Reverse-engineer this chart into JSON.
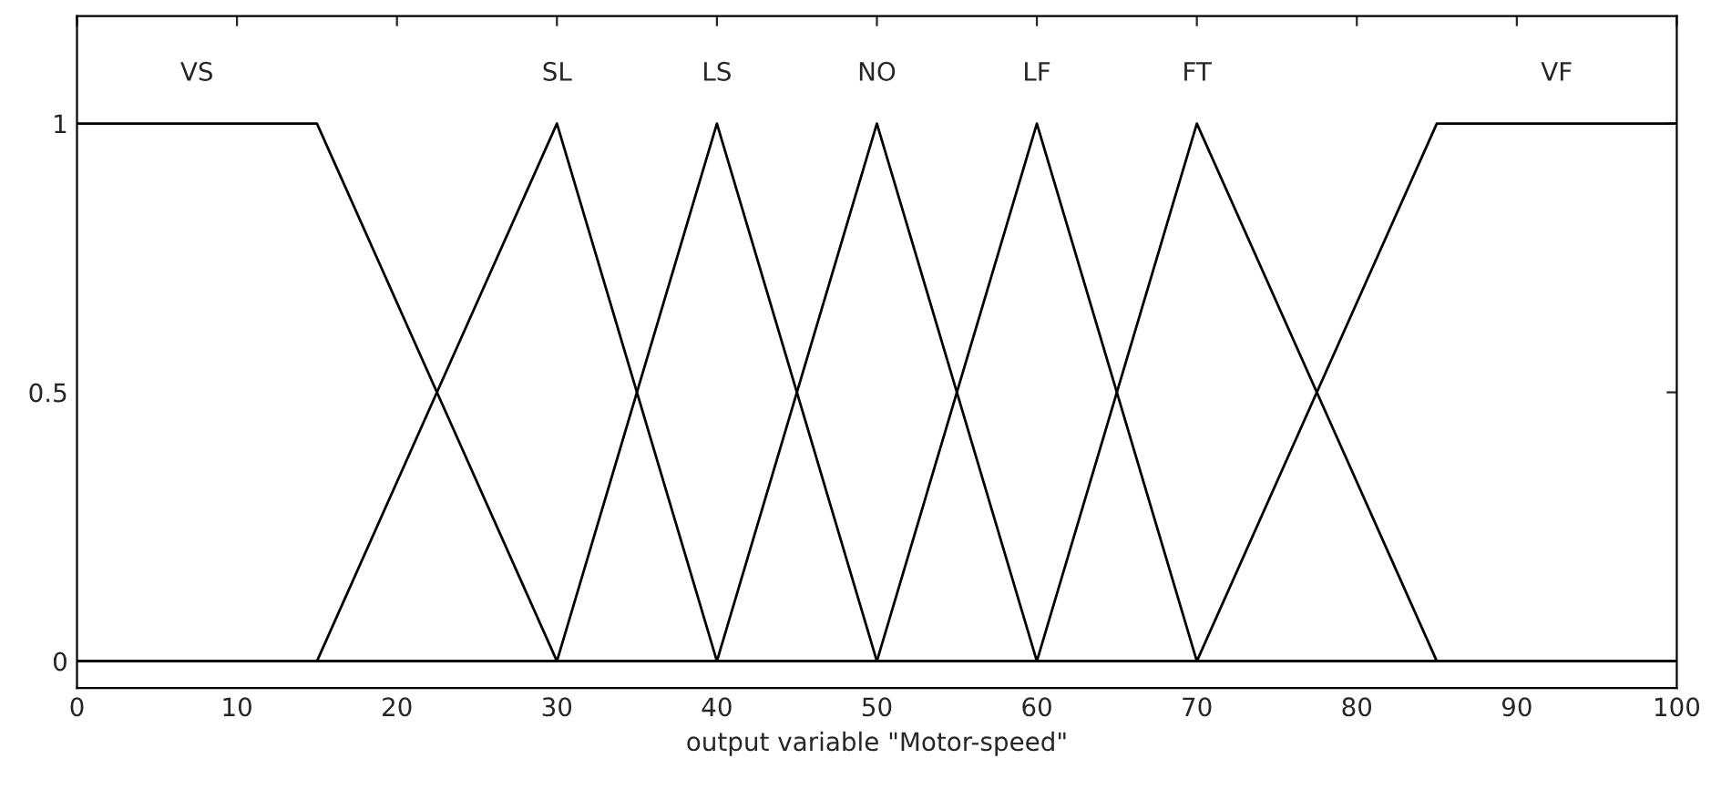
{
  "chart_data": {
    "type": "line",
    "xlabel": "output variable \"Motor-speed\"",
    "xlim": [
      0,
      100
    ],
    "xticks": [
      0,
      10,
      20,
      30,
      40,
      50,
      60,
      70,
      80,
      90,
      100
    ],
    "ylim": [
      -0.05,
      1.2
    ],
    "yticks": [
      0,
      0.5,
      1
    ],
    "grid": false,
    "legend": false,
    "marker": "none",
    "line_style": "solid",
    "series": [
      {
        "name": "VS",
        "color": "#000000",
        "x": [
          0,
          15,
          30,
          100
        ],
        "values": [
          1,
          1,
          0,
          0
        ]
      },
      {
        "name": "SL",
        "color": "#000000",
        "x": [
          0,
          15,
          30,
          40,
          100
        ],
        "values": [
          0,
          0,
          1,
          0,
          0
        ]
      },
      {
        "name": "LS",
        "color": "#000000",
        "x": [
          0,
          30,
          40,
          50,
          100
        ],
        "values": [
          0,
          0,
          1,
          0,
          0
        ]
      },
      {
        "name": "NO",
        "color": "#000000",
        "x": [
          0,
          40,
          50,
          60,
          100
        ],
        "values": [
          0,
          0,
          1,
          0,
          0
        ]
      },
      {
        "name": "LF",
        "color": "#000000",
        "x": [
          0,
          50,
          60,
          70,
          100
        ],
        "values": [
          0,
          0,
          1,
          0,
          0
        ]
      },
      {
        "name": "FT",
        "color": "#000000",
        "x": [
          0,
          60,
          70,
          85,
          100
        ],
        "values": [
          0,
          0,
          1,
          0,
          0
        ]
      },
      {
        "name": "VF",
        "color": "#000000",
        "x": [
          0,
          70,
          85,
          100
        ],
        "values": [
          0,
          0,
          1,
          1
        ]
      }
    ]
  }
}
